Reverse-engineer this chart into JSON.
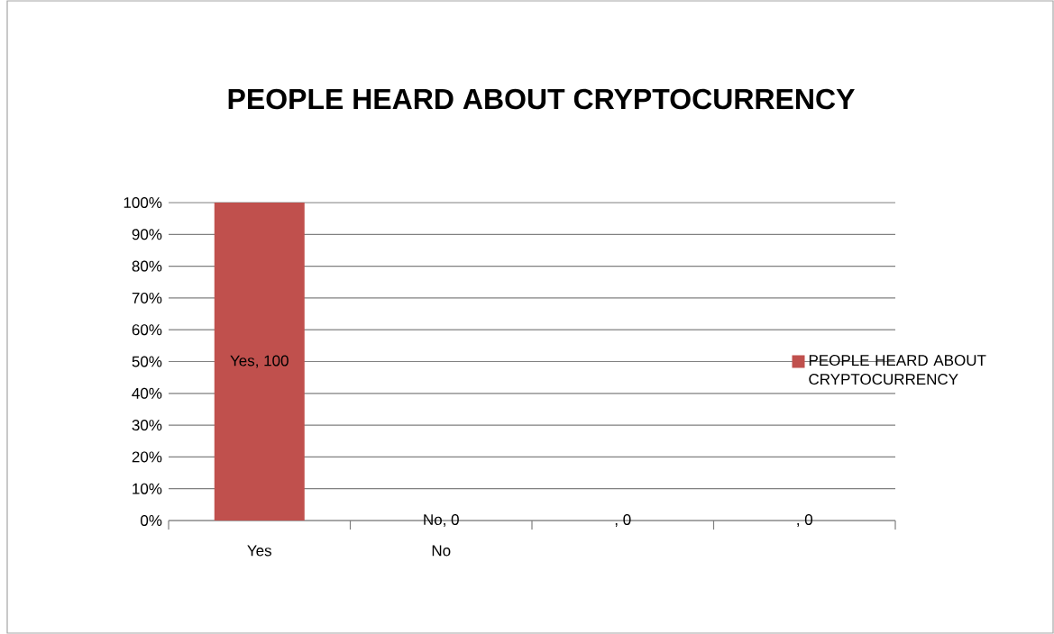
{
  "chart_data": {
    "type": "bar",
    "title": "PEOPLE HEARD ABOUT CRYPTOCURRENCY",
    "categories": [
      "Yes",
      "No",
      null,
      null
    ],
    "series": [
      {
        "name": "PEOPLE HEARD ABOUT CRYPTOCURRENCY",
        "color": "#c0504d",
        "values": [
          100,
          0,
          0,
          0
        ],
        "value_labels": [
          "Yes, 100",
          "No, 0",
          ", 0",
          ", 0"
        ]
      }
    ],
    "ylim": [
      0,
      100
    ],
    "yticks": [
      {
        "value": 0,
        "label": "0%"
      },
      {
        "value": 10,
        "label": "10%"
      },
      {
        "value": 20,
        "label": "20%"
      },
      {
        "value": 30,
        "label": "30%"
      },
      {
        "value": 40,
        "label": "40%"
      },
      {
        "value": 50,
        "label": "50%"
      },
      {
        "value": 60,
        "label": "60%"
      },
      {
        "value": 70,
        "label": "70%"
      },
      {
        "value": 80,
        "label": "80%"
      },
      {
        "value": 90,
        "label": "90%"
      },
      {
        "value": 100,
        "label": "100%"
      }
    ],
    "grid": "y",
    "legend": "right"
  }
}
